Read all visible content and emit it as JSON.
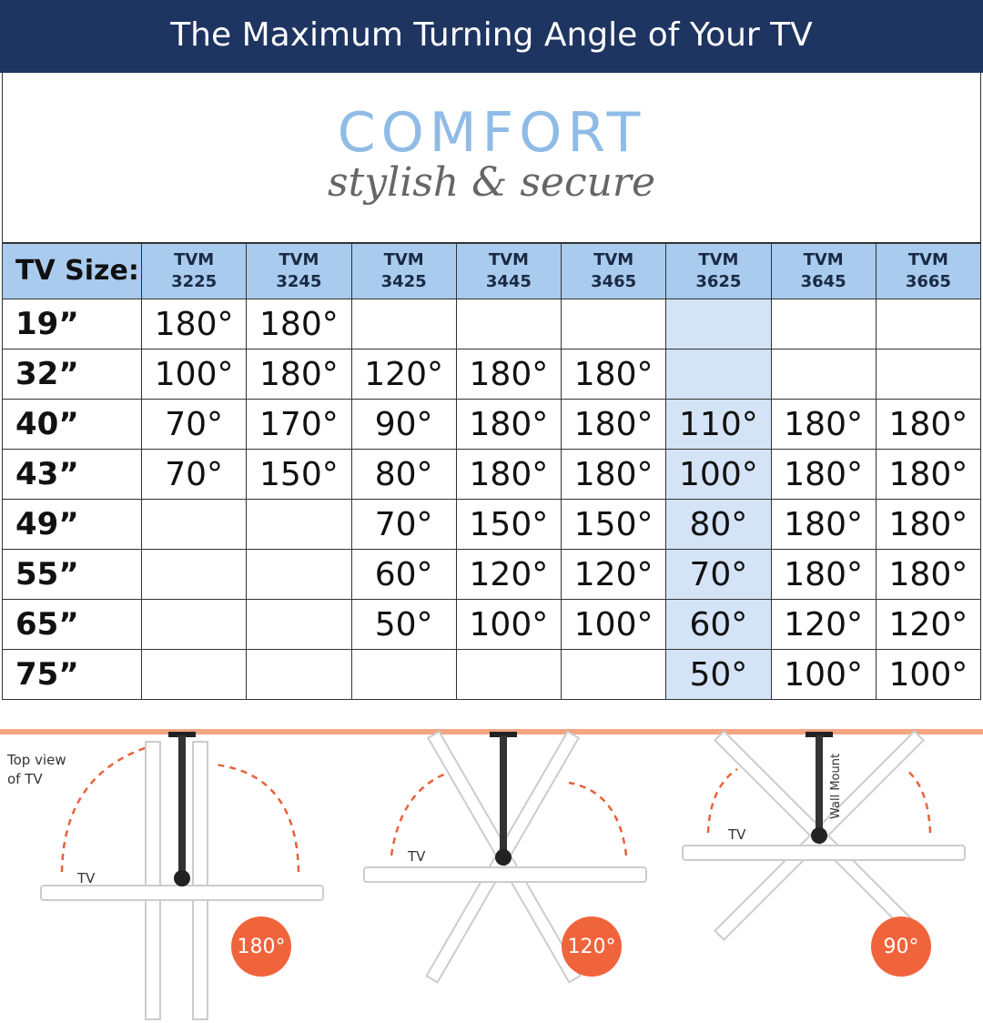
{
  "header": {
    "title": "The Maximum Turning Angle of Your TV"
  },
  "brand": {
    "name": "COMFORT",
    "tagline": "stylish & secure"
  },
  "table": {
    "corner": "TV Size:",
    "columns": [
      [
        "TVM",
        "3225"
      ],
      [
        "TVM",
        "3245"
      ],
      [
        "TVM",
        "3425"
      ],
      [
        "TVM",
        "3445"
      ],
      [
        "TVM",
        "3465"
      ],
      [
        "TVM",
        "3625"
      ],
      [
        "TVM",
        "3645"
      ],
      [
        "TVM",
        "3665"
      ]
    ],
    "rows": [
      {
        "size": "19”",
        "cells": [
          "180°",
          "180°",
          null,
          null,
          null,
          null,
          null,
          null
        ]
      },
      {
        "size": "32”",
        "cells": [
          "100°",
          "180°",
          "120°",
          "180°",
          "180°",
          null,
          null,
          null
        ]
      },
      {
        "size": "40”",
        "cells": [
          "70°",
          "170°",
          "90°",
          "180°",
          "180°",
          "110°",
          "180°",
          "180°"
        ]
      },
      {
        "size": "43”",
        "cells": [
          "70°",
          "150°",
          "80°",
          "180°",
          "180°",
          "100°",
          "180°",
          "180°"
        ]
      },
      {
        "size": "49”",
        "cells": [
          null,
          null,
          "70°",
          "150°",
          "150°",
          "80°",
          "180°",
          "180°"
        ]
      },
      {
        "size": "55”",
        "cells": [
          null,
          null,
          "60°",
          "120°",
          "120°",
          "70°",
          "180°",
          "180°"
        ]
      },
      {
        "size": "65”",
        "cells": [
          null,
          null,
          "50°",
          "100°",
          "100°",
          "60°",
          "120°",
          "120°"
        ]
      },
      {
        "size": "75”",
        "cells": [
          null,
          null,
          null,
          null,
          null,
          "50°",
          "100°",
          "100°"
        ]
      }
    ]
  },
  "diagrams": [
    {
      "note": [
        "Top view",
        "of TV"
      ],
      "tv": "TV",
      "angle": "180°"
    },
    {
      "tv": "TV",
      "angle": "120°"
    },
    {
      "tv": "TV",
      "mount": "Wall Mount",
      "angle": "90°"
    }
  ]
}
